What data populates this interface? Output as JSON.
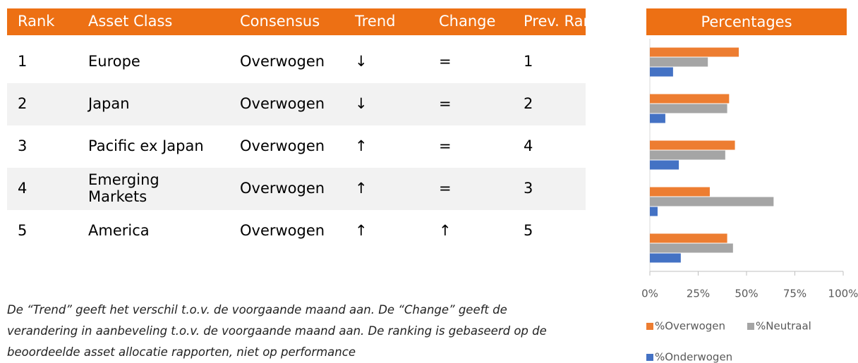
{
  "table": {
    "header": [
      "Rank",
      "Asset Class",
      "Consensus",
      "Trend",
      "Change",
      "Prev. Rank"
    ],
    "rows": [
      [
        "1",
        "Europe",
        "Overwogen",
        "↓",
        "=",
        "1"
      ],
      [
        "2",
        "Japan",
        "Overwogen",
        "↓",
        "=",
        "2"
      ],
      [
        "3",
        "Pacific ex Japan",
        "Overwogen",
        "↑",
        "=",
        "4"
      ],
      [
        "4",
        "Emerging Markets",
        "Overwogen",
        "↑",
        "=",
        "3"
      ],
      [
        "5",
        "America",
        "Overwogen",
        "↑",
        "↑",
        "5"
      ]
    ]
  },
  "note": "De “Trend” geeft het verschil t.o.v. de voorgaande maand aan. De “Change”  geeft de verandering in aanbeveling t.o.v. de voorgaande maand aan. De ranking is gebaseerd op de beoordeelde asset allocatie rapporten, niet op performance",
  "chart_data": {
    "type": "bar",
    "orientation": "horizontal",
    "title": "Percentages",
    "categories": [
      null,
      null,
      null,
      null,
      null
    ],
    "series": [
      {
        "name": "%Overwogen",
        "color": "#ed7d31",
        "values": [
          46,
          41,
          44,
          31,
          40
        ]
      },
      {
        "name": "%Neutraal",
        "color": "#a5a5a5",
        "values": [
          30,
          40,
          39,
          64,
          43
        ]
      },
      {
        "name": "%Onderwogen",
        "color": "#4472c4",
        "values": [
          12,
          8,
          15,
          4,
          16
        ]
      }
    ],
    "xlim": [
      0,
      100
    ],
    "xticks": [
      {
        "value": 0,
        "label": "0%"
      },
      {
        "value": 25,
        "label": "25%"
      },
      {
        "value": 50,
        "label": "50%"
      },
      {
        "value": 75,
        "label": "75%"
      },
      {
        "value": 100,
        "label": "100%"
      }
    ]
  }
}
